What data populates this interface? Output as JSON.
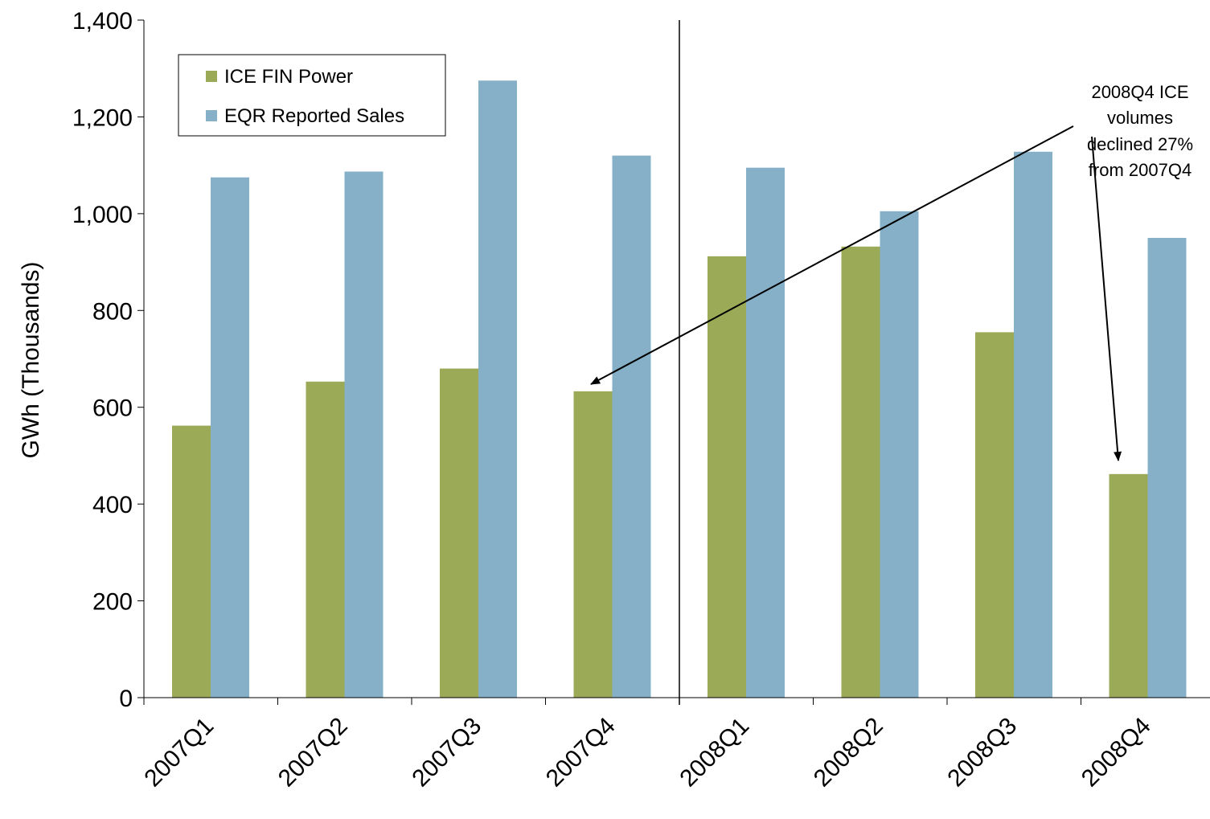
{
  "chart_data": {
    "type": "bar",
    "title": "",
    "xlabel": "",
    "ylabel": "GWh (Thousands)",
    "ylim": [
      0,
      1400
    ],
    "yticks": [
      0,
      200,
      400,
      600,
      800,
      1000,
      1200,
      1400
    ],
    "ytick_labels": [
      "0",
      "200",
      "400",
      "600",
      "800",
      "1,000",
      "1,200",
      "1,400"
    ],
    "categories": [
      "2007Q1",
      "2007Q2",
      "2007Q3",
      "2007Q4",
      "2008Q1",
      "2008Q2",
      "2008Q3",
      "2008Q4"
    ],
    "series": [
      {
        "name": "ICE FIN Power",
        "color": "#9BAA57",
        "values": [
          562,
          653,
          680,
          633,
          912,
          932,
          755,
          462
        ]
      },
      {
        "name": "EQR Reported Sales",
        "color": "#85B0C8",
        "values": [
          1075,
          1087,
          1275,
          1120,
          1095,
          1005,
          1128,
          950
        ]
      }
    ],
    "divider_after_category": "2007Q4",
    "grid": false,
    "legend": {
      "placement": "top-left"
    },
    "annotation": {
      "lines": [
        "2008Q4  ICE",
        "volumes",
        "declined 27%",
        "from 2007Q4"
      ],
      "arrow_targets": [
        "2007Q4",
        "2008Q4"
      ]
    }
  }
}
